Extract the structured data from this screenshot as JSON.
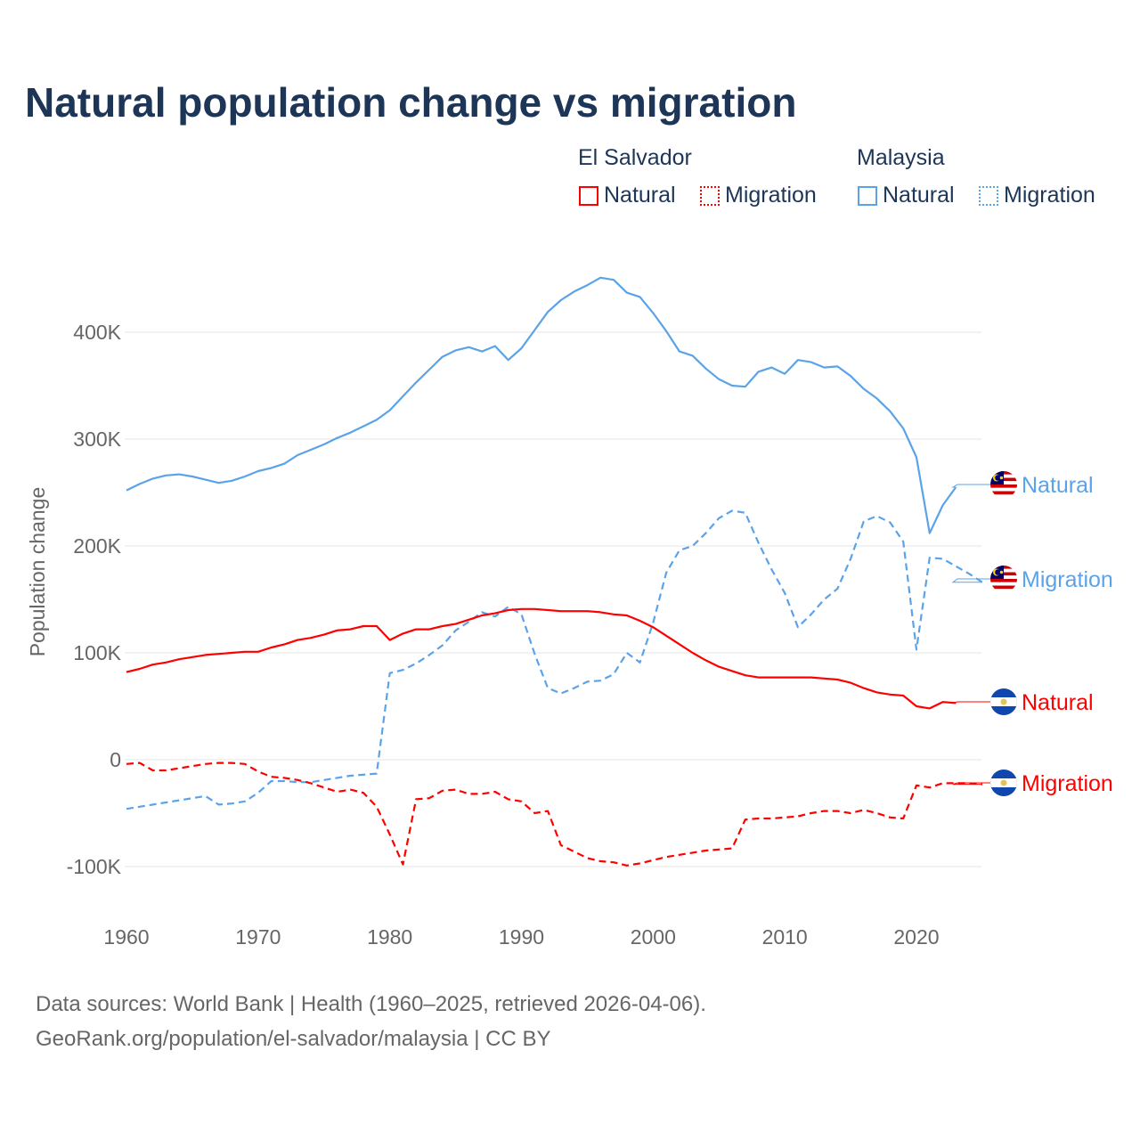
{
  "chart_data": {
    "type": "line",
    "title": "Natural population change vs migration",
    "xlabel": "",
    "ylabel": "Population change",
    "xlim": [
      1960,
      2025
    ],
    "ylim": [
      -120000,
      470000
    ],
    "x_ticks": [
      "1960",
      "1970",
      "1980",
      "1990",
      "2000",
      "2010",
      "2020"
    ],
    "y_ticks": [
      {
        "v": -100000,
        "label": "-100K"
      },
      {
        "v": 0,
        "label": "0"
      },
      {
        "v": 100000,
        "label": "100K"
      },
      {
        "v": 200000,
        "label": "200K"
      },
      {
        "v": 300000,
        "label": "300K"
      },
      {
        "v": 400000,
        "label": "400K"
      }
    ],
    "legend": {
      "placement": "top-right",
      "groups": [
        {
          "country": "El Salvador",
          "items": [
            "Natural",
            "Migration"
          ]
        },
        {
          "country": "Malaysia",
          "items": [
            "Natural",
            "Migration"
          ]
        }
      ]
    },
    "series": [
      {
        "name": "Malaysia Natural",
        "country": "Malaysia",
        "kind": "Natural",
        "label": "Natural",
        "color": "#5ba3e8",
        "dashed": false,
        "start": 1960,
        "values": [
          252,
          258,
          263,
          266,
          267,
          265,
          262,
          259,
          261,
          265,
          270,
          273,
          277,
          285,
          290,
          295,
          301,
          306,
          312,
          318,
          327,
          340,
          353,
          365,
          377,
          383,
          386,
          382,
          387,
          374,
          385,
          402,
          419,
          430,
          438,
          444,
          451,
          449,
          437,
          433,
          418,
          401,
          382,
          378,
          366,
          356,
          350,
          349,
          363,
          367,
          361,
          374,
          372,
          367,
          368,
          359,
          347,
          338,
          326,
          310,
          283,
          212,
          238,
          255
        ]
      },
      {
        "name": "Malaysia Migration",
        "country": "Malaysia",
        "kind": "Migration",
        "label": "Migration",
        "color": "#5ba3e8",
        "dashed": true,
        "start": 1960,
        "values": [
          -46,
          -44,
          -42,
          -40,
          -38,
          -36,
          -34,
          -42,
          -41,
          -39,
          -31,
          -20,
          -20,
          -21,
          -21,
          -19,
          -17,
          -15,
          -14,
          -13,
          81,
          84,
          90,
          98,
          107,
          121,
          129,
          138,
          134,
          143,
          136,
          99,
          67,
          62,
          67,
          73,
          74,
          80,
          100,
          91,
          128,
          175,
          196,
          200,
          212,
          226,
          233,
          231,
          203,
          178,
          156,
          124,
          136,
          150,
          160,
          188,
          223,
          228,
          222,
          204,
          103,
          189,
          188,
          181,
          174,
          166
        ]
      },
      {
        "name": "El Salvador Natural",
        "country": "El Salvador",
        "kind": "Natural",
        "label": "Natural",
        "color": "#ff0000",
        "dashed": false,
        "start": 1960,
        "values": [
          82,
          85,
          89,
          91,
          94,
          96,
          98,
          99,
          100,
          101,
          101,
          105,
          108,
          112,
          114,
          117,
          121,
          122,
          125,
          125,
          112,
          118,
          122,
          122,
          125,
          127,
          131,
          135,
          137,
          140,
          141,
          141,
          140,
          139,
          139,
          139,
          138,
          136,
          135,
          130,
          124,
          116,
          108,
          100,
          93,
          87,
          83,
          79,
          77,
          77,
          77,
          77,
          77,
          76,
          75,
          72,
          67,
          63,
          61,
          60,
          50,
          48,
          54,
          53
        ]
      },
      {
        "name": "El Salvador Migration",
        "country": "El Salvador",
        "kind": "Migration",
        "label": "Migration",
        "color": "#ff0000",
        "dashed": true,
        "start": 1960,
        "values": [
          -4,
          -3,
          -10,
          -10,
          -8,
          -6,
          -4,
          -3,
          -3,
          -4,
          -11,
          -16,
          -17,
          -19,
          -22,
          -26,
          -30,
          -28,
          -31,
          -44,
          -70,
          -98,
          -37,
          -36,
          -29,
          -28,
          -32,
          -32,
          -30,
          -37,
          -39,
          -50,
          -48,
          -80,
          -86,
          -92,
          -95,
          -96,
          -99,
          -97,
          -94,
          -91,
          -89,
          -87,
          -85,
          -84,
          -83,
          -56,
          -55,
          -55,
          -54,
          -53,
          -50,
          -48,
          -48,
          -50,
          -47,
          -50,
          -54,
          -55,
          -24,
          -26,
          -22,
          -22,
          -22,
          -23
        ]
      }
    ],
    "units": "thousands"
  },
  "source": {
    "line1": "Data sources: World Bank | Health (1960–2025, retrieved 2026-04-06).",
    "line2": "GeoRank.org/population/el-salvador/malaysia | CC BY"
  }
}
